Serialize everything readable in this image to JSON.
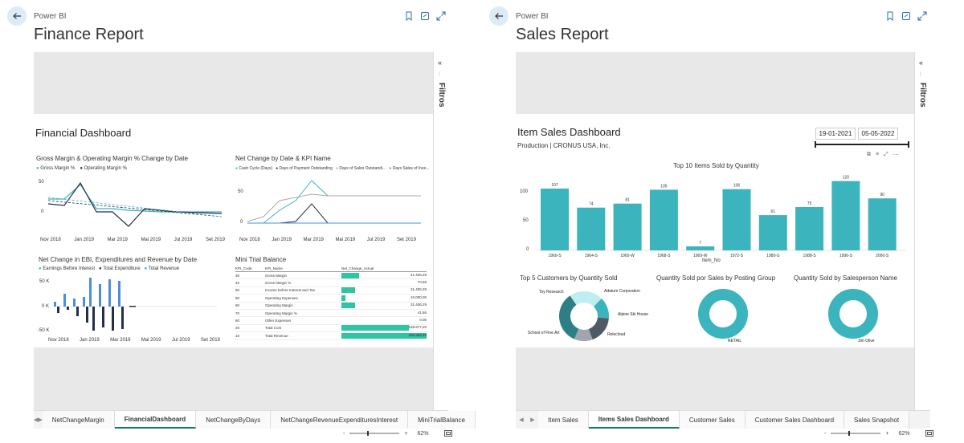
{
  "colors": {
    "teal": "#3cb4bd",
    "dark": "#252f4a",
    "blue": "#4a90d9",
    "green_bar": "#2ec4a4"
  },
  "left": {
    "app_name": "Power BI",
    "title": "Finance Report",
    "dashboard_title": "Financial Dashboard",
    "filters_label": "Filtros",
    "chart1": {
      "title": "Gross Margin & Operating Margin % Change by Date",
      "legend": [
        "Gross Margin %",
        "Operating Margin %"
      ],
      "y_ticks": [
        "50",
        "0"
      ],
      "x_ticks": [
        "Nov 2018",
        "Jan 2019",
        "Mar 2019",
        "Mai 2019",
        "Jul 2019",
        "Set 2019"
      ]
    },
    "chart2": {
      "title": "Net Change by Date & KPI Name",
      "legend": [
        "Cash Cycle (Days)",
        "Days of Payment Outstanding",
        "Days of Sales Outstandi...",
        "Days Sales of Inve..."
      ],
      "y_ticks": [
        "50",
        "0"
      ],
      "x_ticks": [
        "Nov 2018",
        "Jan 2019",
        "Mar 2019",
        "Mai 2019",
        "Jul 2019",
        "Set 2019"
      ]
    },
    "chart3": {
      "title": "Net Change in EBI, Expenditures and Revenue by Date",
      "legend": [
        "Earnings Before Interest",
        "Total Expenditure",
        "Total Revenue"
      ],
      "y_ticks": [
        "50 K",
        "0 K",
        "-50 K"
      ],
      "x_ticks": [
        "Nov 2018",
        "Jan 2019",
        "Mar 2019",
        "Mai 2019",
        "Jul 2019",
        "Set 2019"
      ]
    },
    "table": {
      "title": "Mini Trial Balance",
      "headers": [
        "KPI_Code",
        "KPI_Name",
        "Net_Change_Actual"
      ],
      "rows": [
        [
          "30",
          "Gross Margin",
          "41.406,29"
        ],
        [
          "40",
          "Gross Margin %",
          "70,56"
        ],
        [
          "90",
          "Income before Interest and Tax",
          "31.406,29"
        ],
        [
          "50",
          "Operating Expenses",
          "10.000,00"
        ],
        [
          "60",
          "Operating Margin",
          "31.406,29"
        ],
        [
          "70",
          "Operating Margin %",
          "41,86"
        ],
        [
          "80",
          "Other Expenses",
          "0,00"
        ],
        [
          "20",
          "Total Cost",
          "158.977,20"
        ],
        [
          "10",
          "Total Revenue",
          "200.383,49"
        ]
      ]
    },
    "tabs": [
      "NetChangeMargin",
      "FinancialDashboard",
      "NetChangeByDays",
      "NetChangeRevenueExpendituresInterest",
      "MiniTrialBalance"
    ],
    "active_tab": "FinancialDashboard",
    "zoom": "62%"
  },
  "right": {
    "app_name": "Power BI",
    "title": "Sales Report",
    "dashboard_title": "Item Sales Dashboard",
    "subtitle": "Production | CRONUS USA, Inc.",
    "date_from": "19-01-2021",
    "date_to": "05-05-2022",
    "filters_label": "Filtros",
    "bar_chart": {
      "title": "Top 10 Items Sold by Quantity",
      "xlabel": "Item_No",
      "y_ticks": [
        "100",
        "50",
        "0"
      ]
    },
    "donut1": {
      "title": "Top 5 Customers by Quantity Sold",
      "labels": [
        "Toy Research",
        "Adatum Corporation",
        "Alpine Ski House",
        "Relecloud",
        "School of Fine Art"
      ]
    },
    "donut2": {
      "title": "Quantity Sold por Sales by Posting Group",
      "labels": [
        "RETAIL"
      ]
    },
    "donut3": {
      "title": "Quantity Sold by Salesperson Name",
      "labels": [
        "Jim Olive"
      ]
    },
    "tabs": [
      "Item Sales",
      "Items Sales Dashboard",
      "Customer Sales",
      "Customer Sales Dashboard",
      "Sales Snapshot"
    ],
    "active_tab": "Items Sales Dashboard",
    "zoom": "62%"
  },
  "chart_data": [
    {
      "type": "bar",
      "title": "Top 10 Items Sold by Quantity",
      "xlabel": "Item_No",
      "ylabel": "",
      "categories": [
        "1960-S",
        "1964-S",
        "1965-W",
        "1968-S",
        "1969-W",
        "1972-S",
        "1980-S",
        "1988-S",
        "1996-S",
        "2000-S"
      ],
      "values": [
        107,
        74,
        81,
        105,
        7,
        106,
        61,
        75,
        120,
        90
      ],
      "ylim": [
        0,
        130
      ]
    },
    {
      "type": "pie",
      "title": "Top 5 Customers by Quantity Sold",
      "categories": [
        "Toy Research",
        "Adatum Corporation",
        "Alpine Ski House",
        "Relecloud",
        "School of Fine Art"
      ],
      "values": [
        22,
        14,
        18,
        12,
        34
      ]
    }
  ]
}
